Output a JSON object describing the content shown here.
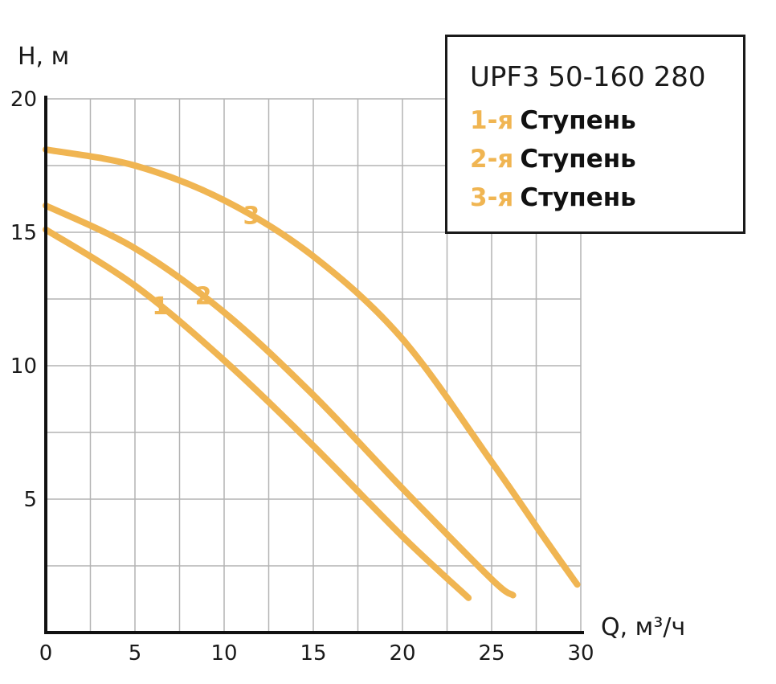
{
  "colors": {
    "curve": "#f0b552",
    "grid": "#b3b3b3",
    "axis": "#111111",
    "text": "#1a1a1a"
  },
  "chart_data": {
    "type": "line",
    "xlabel": "Q, м³/ч",
    "ylabel": "H, м",
    "xlim": [
      0,
      30
    ],
    "ylim": [
      0,
      20
    ],
    "x_ticks": [
      "0",
      "5",
      "10",
      "15",
      "20",
      "25",
      "30"
    ],
    "y_ticks": [
      "5",
      "10",
      "15",
      "20"
    ],
    "grid": true,
    "legend_position": "top-right",
    "legend_title": "UPF3 50-160 280",
    "series": [
      {
        "name": "1-я",
        "label": "1",
        "points": [
          [
            0,
            15.1
          ],
          [
            5,
            13.0
          ],
          [
            10,
            10.2
          ],
          [
            15,
            7.0
          ],
          [
            20,
            3.6
          ],
          [
            23.7,
            1.3
          ]
        ]
      },
      {
        "name": "2-я",
        "label": "2",
        "points": [
          [
            0,
            16.0
          ],
          [
            5,
            14.4
          ],
          [
            10,
            12.0
          ],
          [
            15,
            8.9
          ],
          [
            20,
            5.4
          ],
          [
            25,
            2.0
          ],
          [
            26.2,
            1.4
          ]
        ]
      },
      {
        "name": "3-я",
        "label": "3",
        "points": [
          [
            0,
            18.1
          ],
          [
            5,
            17.5
          ],
          [
            10,
            16.2
          ],
          [
            15,
            14.1
          ],
          [
            20,
            11.0
          ],
          [
            25,
            6.4
          ],
          [
            28,
            3.5
          ],
          [
            29.8,
            1.8
          ]
        ]
      }
    ],
    "legend_items": [
      {
        "num": "1-я",
        "text": "Ступень"
      },
      {
        "num": "2-я",
        "text": "Ступень"
      },
      {
        "num": "3-я",
        "text": "Ступень"
      }
    ]
  }
}
